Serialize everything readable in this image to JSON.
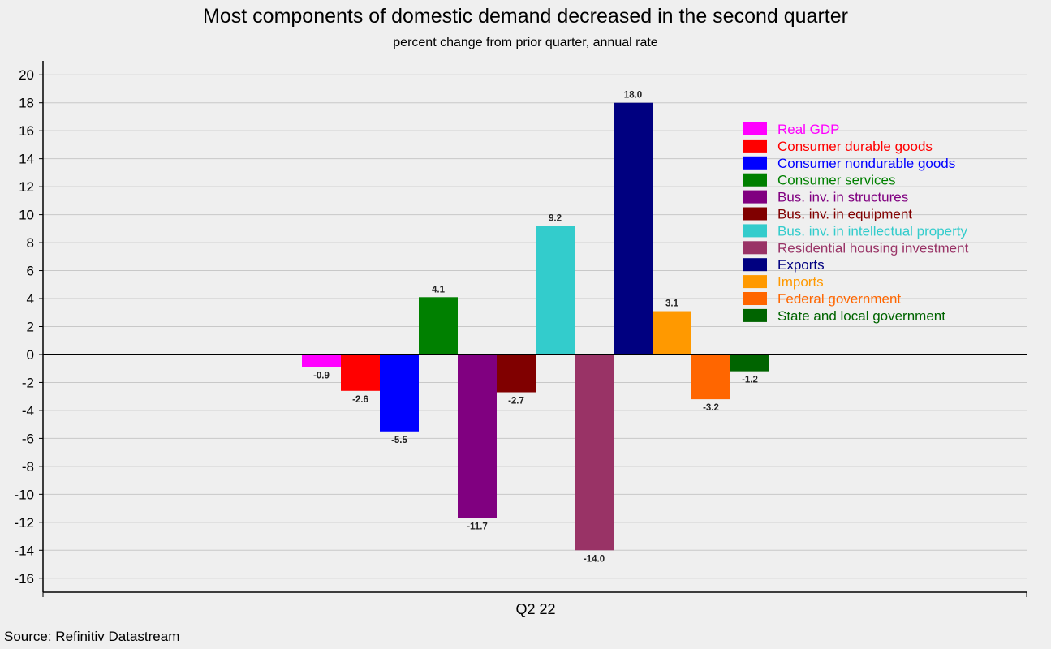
{
  "title": "Most components of domestic demand decreased in the second quarter",
  "subtitle": "percent change from prior quarter, annual rate",
  "source": "Source: Refinitiv Datastream",
  "chart_data": {
    "type": "bar",
    "title": "Most components of domestic demand decreased in the second quarter",
    "subtitle": "percent change from prior quarter, annual rate",
    "xlabel": "",
    "ylabel": "",
    "categories": [
      "Q2 22"
    ],
    "ylim": [
      -17,
      21
    ],
    "yticks": [
      20,
      18,
      16,
      14,
      12,
      10,
      8,
      6,
      4,
      2,
      0,
      -2,
      -4,
      -6,
      -8,
      -10,
      -12,
      -14,
      -16
    ],
    "grid": true,
    "legend_position": "top-right",
    "series": [
      {
        "name": "Real GDP",
        "values": [
          -0.9
        ],
        "label": "-0.9",
        "color": "#ff00ff"
      },
      {
        "name": "Consumer durable goods",
        "values": [
          -2.6
        ],
        "label": "-2.6",
        "color": "#ff0000"
      },
      {
        "name": "Consumer nondurable goods",
        "values": [
          -5.5
        ],
        "label": "-5.5",
        "color": "#0000ff"
      },
      {
        "name": "Consumer services",
        "values": [
          4.1
        ],
        "label": "4.1",
        "color": "#008000"
      },
      {
        "name": "Bus. inv. in structures",
        "values": [
          -11.7
        ],
        "label": "-11.7",
        "color": "#800080"
      },
      {
        "name": "Bus. inv. in equipment",
        "values": [
          -2.7
        ],
        "label": "-2.7",
        "color": "#800000"
      },
      {
        "name": "Bus. inv. in intellectual property",
        "values": [
          9.2
        ],
        "label": "9.2",
        "color": "#33cccc"
      },
      {
        "name": "Residential housing investment",
        "values": [
          -14.0
        ],
        "label": "-14.0",
        "color": "#993366"
      },
      {
        "name": "Exports",
        "values": [
          18.0
        ],
        "label": "18.0",
        "color": "#000080"
      },
      {
        "name": "Imports",
        "values": [
          3.1
        ],
        "label": "3.1",
        "color": "#ff9900"
      },
      {
        "name": "Federal government",
        "values": [
          -3.2
        ],
        "label": "-3.2",
        "color": "#ff6600"
      },
      {
        "name": "State and local government",
        "values": [
          -1.2
        ],
        "label": "-1.2",
        "color": "#006400"
      }
    ]
  }
}
